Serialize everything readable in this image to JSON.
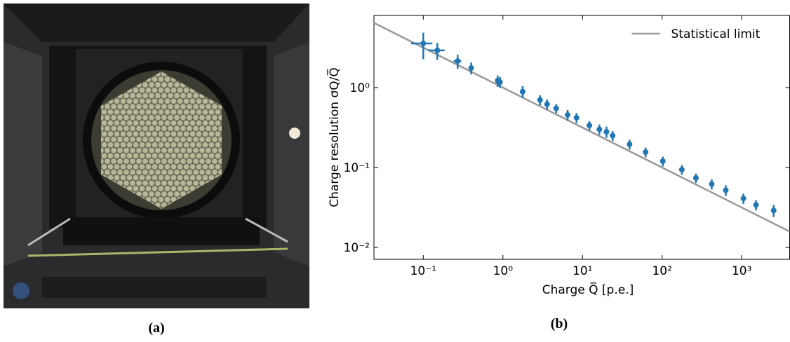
{
  "panel_labels": [
    "(a)",
    "(b)"
  ],
  "chart_data": {
    "type": "scatter",
    "xlabel": "Charge Q̅ [p.e.]",
    "ylabel": "Charge resolution σQ/Q̅",
    "xscale": "log",
    "yscale": "log",
    "xlim": [
      0.024,
      4000
    ],
    "ylim": [
      0.0071,
      8.0
    ],
    "xticks": [
      {
        "value": 0.1,
        "label": "10⁻¹"
      },
      {
        "value": 1,
        "label": "10⁰"
      },
      {
        "value": 10,
        "label": "10¹"
      },
      {
        "value": 100,
        "label": "10²"
      },
      {
        "value": 1000,
        "label": "10³"
      }
    ],
    "yticks": [
      {
        "value": 0.01,
        "label": "10⁻²"
      },
      {
        "value": 0.1,
        "label": "10⁻¹"
      },
      {
        "value": 1,
        "label": "10⁰"
      }
    ],
    "legend": "upper right",
    "series": [
      {
        "name": "Statistical limit",
        "kind": "line",
        "color": "#999999",
        "x": [
          0.024,
          4000
        ],
        "values": [
          6.45,
          0.0158
        ]
      },
      {
        "kind": "points",
        "color": "#1f77b4",
        "x": [
          0.1,
          0.15,
          0.27,
          0.4,
          0.86,
          0.92,
          1.77,
          2.93,
          3.59,
          4.67,
          6.5,
          8.4,
          12.2,
          16.3,
          20,
          23.9,
          39,
          62,
          102,
          177,
          266,
          420,
          630,
          1050,
          1510,
          2520
        ],
        "values": [
          3.57,
          2.92,
          2.15,
          1.76,
          1.22,
          1.17,
          0.89,
          0.7,
          0.62,
          0.55,
          0.455,
          0.42,
          0.336,
          0.3,
          0.28,
          0.25,
          0.195,
          0.156,
          0.12,
          0.094,
          0.074,
          0.062,
          0.052,
          0.041,
          0.034,
          0.029
        ],
        "xerr": [
          0.03,
          0.035,
          0.03,
          null,
          null,
          null,
          null,
          null,
          null,
          null,
          null,
          null,
          null,
          null,
          null,
          null,
          null,
          null,
          null,
          null,
          null,
          null,
          null,
          null,
          null,
          null
        ],
        "yerr": [
          1.3,
          0.7,
          0.43,
          0.3,
          0.2,
          0.18,
          0.15,
          0.1,
          0.09,
          0.07,
          0.07,
          0.06,
          0.045,
          0.045,
          0.045,
          0.035,
          0.028,
          0.022,
          0.017,
          0.013,
          0.01,
          0.009,
          0.008,
          0.006,
          0.005,
          0.005
        ]
      }
    ]
  }
}
